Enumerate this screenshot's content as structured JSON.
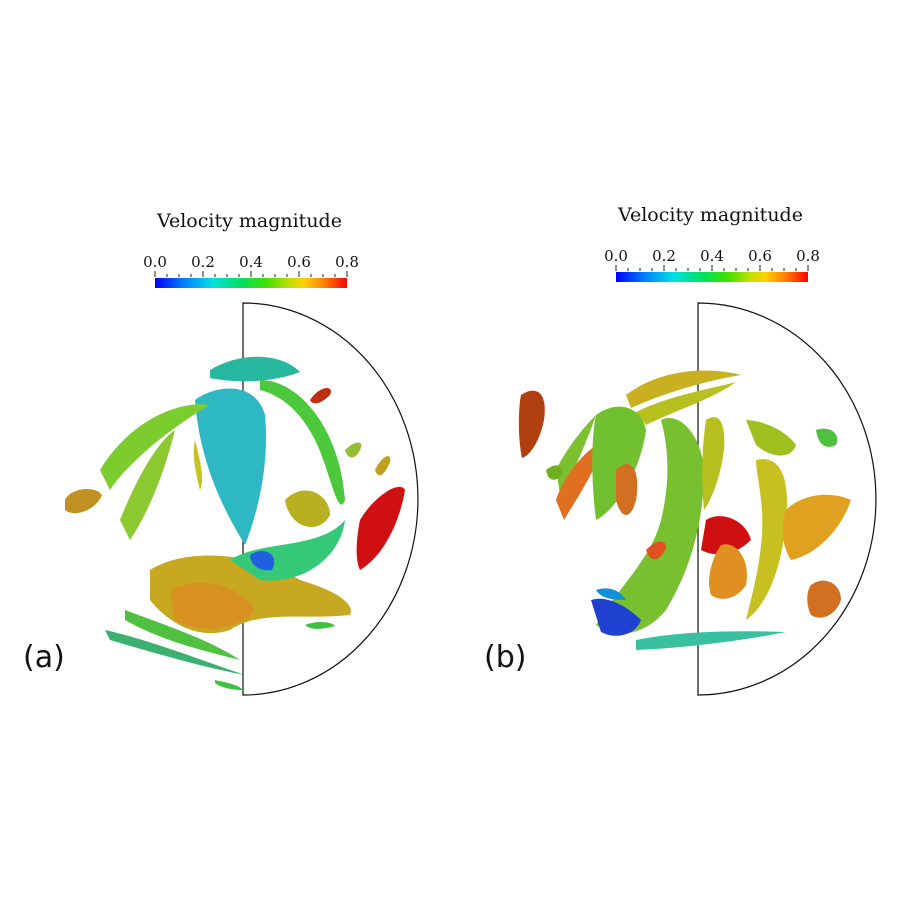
{
  "panels": [
    {
      "label": "(a)",
      "colorbar": {
        "title": "Velocity magnitude",
        "ticks": [
          "0.0",
          "0.2",
          "0.4",
          "0.6",
          "0.8"
        ],
        "colors": [
          "#0000ff",
          "#00e0e0",
          "#00e060",
          "#ffd000",
          "#ff0000"
        ]
      }
    },
    {
      "label": "(b)",
      "colorbar": {
        "title": "Velocity magnitude",
        "ticks": [
          "0.0",
          "0.2",
          "0.4",
          "0.6",
          "0.8"
        ],
        "colors": [
          "#0000ff",
          "#00e0e0",
          "#00e060",
          "#ffd000",
          "#ff0000"
        ]
      }
    }
  ]
}
